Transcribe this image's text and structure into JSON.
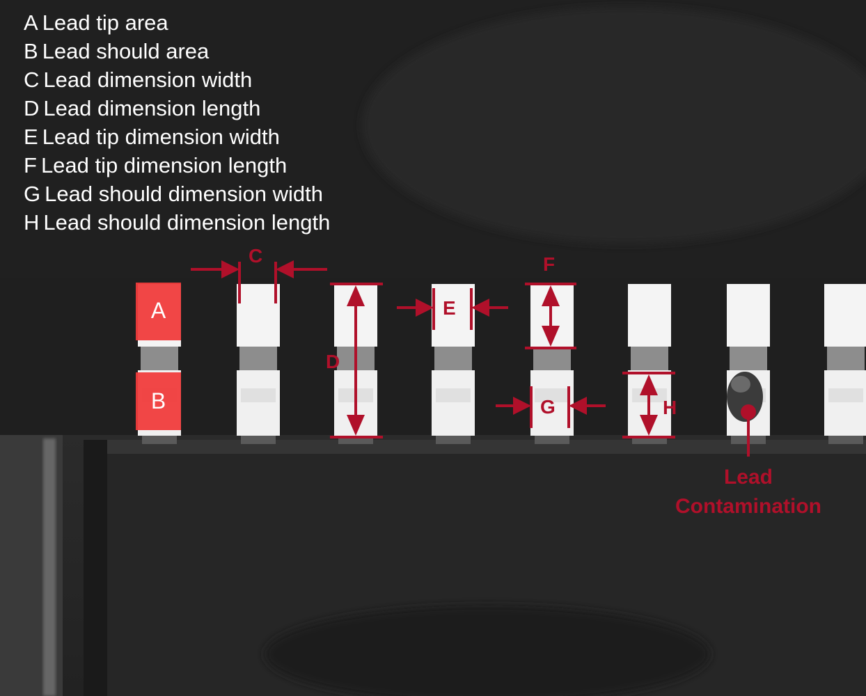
{
  "legend": [
    {
      "letter": "A",
      "text": "Lead tip area"
    },
    {
      "letter": "B",
      "text": "Lead should area"
    },
    {
      "letter": "C",
      "text": "Lead dimension width"
    },
    {
      "letter": "D",
      "text": "Lead dimension length"
    },
    {
      "letter": "E",
      "text": "Lead tip dimension width"
    },
    {
      "letter": "F",
      "text": "Lead tip dimension length"
    },
    {
      "letter": "G",
      "text": "Lead should dimension width"
    },
    {
      "letter": "H",
      "text": "Lead should dimension length"
    }
  ],
  "labels": {
    "box_a": "A",
    "box_b": "B",
    "c": "C",
    "d": "D",
    "e": "E",
    "f": "F",
    "g": "G",
    "h": "H"
  },
  "annotation": {
    "line1": "Lead",
    "line2": "Contamination"
  },
  "colors": {
    "annotation_red": "#b0102a",
    "area_fill": "#f03c3c",
    "lead_white": "#f4f4f4"
  }
}
